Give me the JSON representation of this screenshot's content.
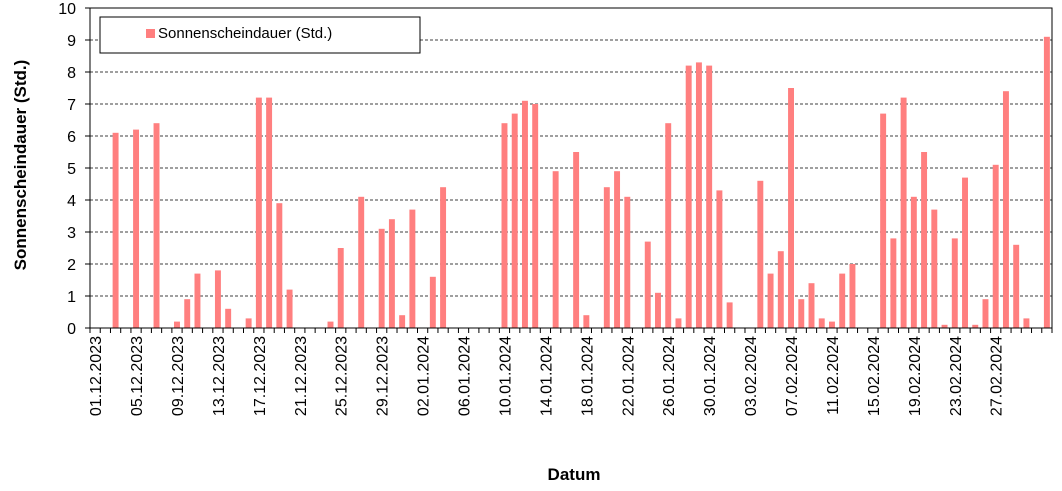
{
  "chart_data": {
    "type": "bar",
    "xlabel": "Datum",
    "ylabel": "Sonnenscheindauer  (Std.)",
    "ylim": [
      0,
      10
    ],
    "yticks": [
      0,
      1,
      2,
      3,
      4,
      5,
      6,
      7,
      8,
      9,
      10
    ],
    "grid": "horizontal dashed",
    "legend_position": "top-left",
    "bar_color": "#ff7f7f",
    "start_date": "01.12.2023",
    "x_tick_labels": [
      "01.12.2023",
      "05.12.2023",
      "09.12.2023",
      "13.12.2023",
      "17.12.2023",
      "21.12.2023",
      "25.12.2023",
      "29.12.2023",
      "02.01.2024",
      "06.01.2024",
      "10.01.2024",
      "14.01.2024",
      "18.01.2024",
      "22.01.2024",
      "26.01.2024",
      "30.01.2024",
      "03.02.2024",
      "07.02.2024",
      "11.02.2024",
      "15.02.2024",
      "19.02.2024",
      "23.02.2024",
      "27.02.2024"
    ],
    "series": [
      {
        "name": "Sonnenscheindauer (Std.)",
        "values": [
          0,
          0,
          6.1,
          0,
          6.2,
          0,
          6.4,
          0,
          0.2,
          0.9,
          1.7,
          0,
          1.8,
          0.6,
          0,
          0.3,
          7.2,
          7.2,
          3.9,
          1.2,
          0,
          0,
          0,
          0.2,
          2.5,
          0,
          4.1,
          0,
          3.1,
          3.4,
          0.4,
          3.7,
          0,
          1.6,
          4.4,
          0,
          0,
          0,
          0,
          0,
          6.4,
          6.7,
          7.1,
          7.0,
          0,
          4.9,
          0,
          5.5,
          0.4,
          0,
          4.4,
          4.9,
          4.1,
          0,
          2.7,
          1.1,
          6.4,
          0.3,
          8.2,
          8.3,
          8.2,
          4.3,
          0.8,
          0,
          0,
          4.6,
          1.7,
          2.4,
          7.5,
          0.9,
          1.4,
          0.3,
          0.2,
          1.7,
          2.0,
          0,
          0,
          6.7,
          2.8,
          7.2,
          4.1,
          5.5,
          3.7,
          0.1,
          2.8,
          4.7,
          0.1,
          0.9,
          5.1,
          7.4,
          2.6,
          0.3,
          0,
          9.1
        ]
      }
    ]
  }
}
